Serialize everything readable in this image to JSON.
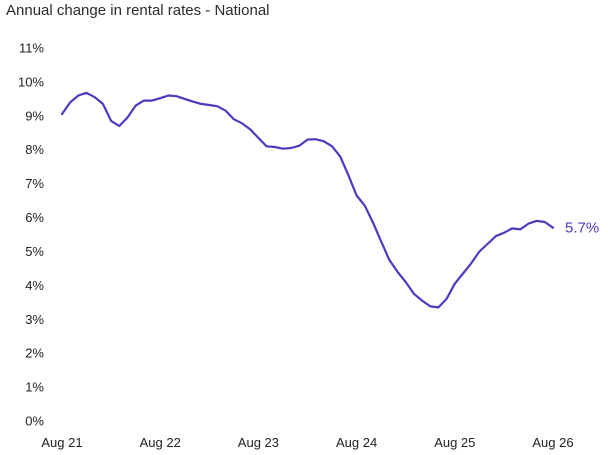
{
  "chart_data": {
    "type": "line",
    "title": "Annual change in rental rates - National",
    "xlabel": "",
    "ylabel": "",
    "x_tick_labels": [
      "Aug 21",
      "Aug 22",
      "Aug 23",
      "Aug 24",
      "Aug 25",
      "Aug 26"
    ],
    "y_tick_labels": [
      "0%",
      "1%",
      "2%",
      "3%",
      "4%",
      "5%",
      "6%",
      "7%",
      "8%",
      "9%",
      "10%",
      "11%"
    ],
    "ylim": [
      0,
      11
    ],
    "grid": false,
    "legend": "none",
    "end_label": "5.7%",
    "line_color": "#4a3bbf",
    "series": [
      {
        "values": [
          9.05,
          9.4,
          9.6,
          9.68,
          9.55,
          9.35,
          8.85,
          8.7,
          8.95,
          9.3,
          9.45,
          9.45,
          9.52,
          9.6,
          9.58,
          9.5,
          9.42,
          9.35,
          9.32,
          9.28,
          9.15,
          8.9,
          8.78,
          8.6,
          8.35,
          8.1,
          8.08,
          8.03,
          8.05,
          8.12,
          8.3,
          8.31,
          8.25,
          8.1,
          7.8,
          7.25,
          6.65,
          6.35,
          5.85,
          5.3,
          4.75,
          4.4,
          4.1,
          3.75,
          3.55,
          3.38,
          3.35,
          3.6,
          4.05,
          4.35,
          4.65,
          5.0,
          5.22,
          5.45,
          5.55,
          5.68,
          5.65,
          5.82,
          5.9,
          5.87,
          5.7
        ]
      }
    ]
  }
}
